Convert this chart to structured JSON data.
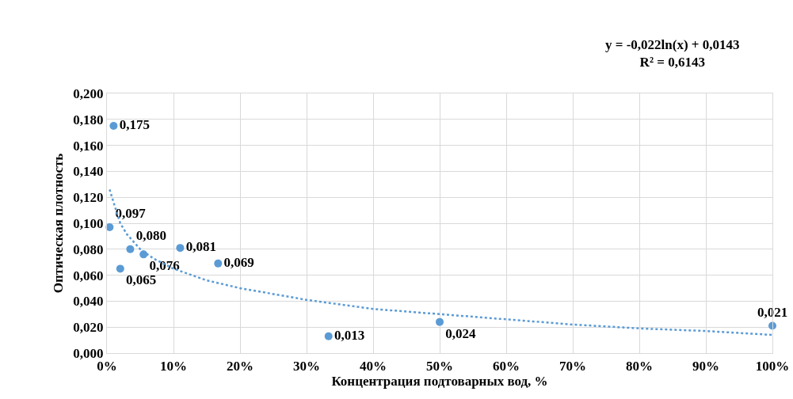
{
  "chart_data": {
    "type": "scatter",
    "xlabel": "Концентрация подтоварных вод, %",
    "ylabel": "Оптическая плотность",
    "annotations": [
      "y = -0,022ln(x) + 0,0143\nR² = 0,6143"
    ],
    "xlim": [
      0,
      100
    ],
    "ylim": [
      0,
      0.2
    ],
    "xticks": [
      {
        "value": 0,
        "label": "0%"
      },
      {
        "value": 10,
        "label": "10%"
      },
      {
        "value": 20,
        "label": "20%"
      },
      {
        "value": 30,
        "label": "30%"
      },
      {
        "value": 40,
        "label": "40%"
      },
      {
        "value": 50,
        "label": "50%"
      },
      {
        "value": 60,
        "label": "60%"
      },
      {
        "value": 70,
        "label": "70%"
      },
      {
        "value": 80,
        "label": "80%"
      },
      {
        "value": 90,
        "label": "90%"
      },
      {
        "value": 100,
        "label": "100%"
      }
    ],
    "yticks": [
      {
        "value": 0,
        "label": "0,000"
      },
      {
        "value": 0.02,
        "label": "0,020"
      },
      {
        "value": 0.04,
        "label": "0,040"
      },
      {
        "value": 0.06,
        "label": "0,060"
      },
      {
        "value": 0.08,
        "label": "0,080"
      },
      {
        "value": 0.1,
        "label": "0,100"
      },
      {
        "value": 0.12,
        "label": "0,120"
      },
      {
        "value": 0.14,
        "label": "0,140"
      },
      {
        "value": 0.16,
        "label": "0,160"
      },
      {
        "value": 0.18,
        "label": "0,180"
      },
      {
        "value": 0.2,
        "label": "0,200"
      }
    ],
    "grid": true,
    "series": [
      {
        "type": "scatter",
        "color": "#5b9bd5",
        "marker": "circle",
        "x": [
          0.4,
          1.0,
          2.0,
          3.5,
          5.5,
          11.0,
          16.7,
          33.3,
          50,
          100
        ],
        "values": [
          0.097,
          0.175,
          0.065,
          0.08,
          0.076,
          0.081,
          0.069,
          0.013,
          0.024,
          0.021
        ],
        "value_labels": [
          "0,097",
          "0,175",
          "0,065",
          "0,080",
          "0,076",
          "0,081",
          "0,069",
          "0,013",
          "0,024",
          "0,021"
        ]
      },
      {
        "type": "line",
        "color": "#5b9bd5",
        "marker": "none",
        "line_style": "dotted",
        "x": [
          0.4,
          1,
          2,
          3,
          5,
          7,
          10,
          15,
          20,
          30,
          40,
          50,
          60,
          70,
          80,
          90,
          100
        ],
        "values": [
          0.126,
          0.116,
          0.1,
          0.0915,
          0.08,
          0.0728,
          0.065,
          0.056,
          0.05,
          0.041,
          0.034,
          0.03,
          0.026,
          0.022,
          0.019,
          0.017,
          0.014
        ]
      }
    ]
  }
}
